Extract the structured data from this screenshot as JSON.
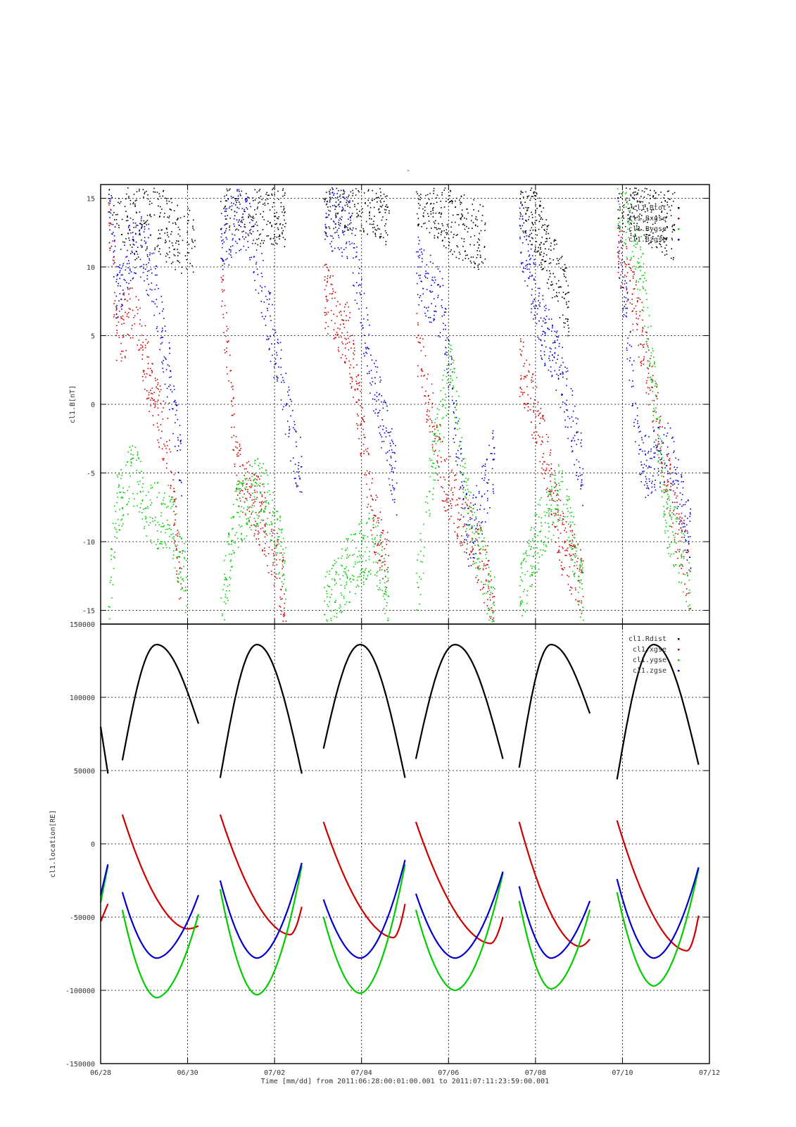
{
  "chart_data": [
    {
      "type": "scatter",
      "title": "-",
      "ylabel": "cl1.B[nT]",
      "ylim": [
        -16,
        16
      ],
      "yticks": [
        15,
        10,
        5,
        0,
        -5,
        -10,
        -15
      ],
      "ytick_labels": [
        "15",
        "10",
        "5",
        "0",
        "-5",
        "-10",
        "-15"
      ],
      "grid": true,
      "legend_position": "top-right",
      "series": [
        {
          "name": "cl1.Btot",
          "color": "#000000"
        },
        {
          "name": "cl1.Bxgse",
          "color": "#cc0000"
        },
        {
          "name": "cl1.Bygse",
          "color": "#00cc00"
        },
        {
          "name": "cl1.Bzgse",
          "color": "#0000cc"
        }
      ],
      "orbit_passes": [
        {
          "start": "06/28 04:00",
          "end": "06/30 04:00",
          "btot": [
            [
              0.0,
              16
            ],
            [
              0.3,
              13
            ],
            [
              0.5,
              14
            ],
            [
              0.8,
              12
            ],
            [
              1.0,
              12
            ],
            [
              1.3,
              15
            ]
          ],
          "bx": [
            [
              0.0,
              15
            ],
            [
              0.1,
              5
            ],
            [
              0.3,
              7
            ],
            [
              0.5,
              1
            ],
            [
              0.7,
              -3
            ],
            [
              0.85,
              -15
            ]
          ],
          "by": [
            [
              0.0,
              -15
            ],
            [
              0.1,
              -7
            ],
            [
              0.3,
              -5
            ],
            [
              0.5,
              -8
            ],
            [
              0.7,
              -8
            ],
            [
              0.9,
              -13
            ]
          ],
          "bz": [
            [
              0.0,
              16
            ],
            [
              0.1,
              8
            ],
            [
              0.3,
              12
            ],
            [
              0.5,
              10
            ],
            [
              0.7,
              2
            ],
            [
              0.85,
              -5
            ]
          ]
        },
        {
          "start": "06/30 18:00",
          "end": "07/02 15:00",
          "btot": [
            [
              0.1,
              15
            ],
            [
              0.5,
              14
            ],
            [
              0.8,
              14
            ]
          ],
          "bx": [
            [
              0.0,
              10
            ],
            [
              0.2,
              -5
            ],
            [
              0.5,
              -8
            ],
            [
              0.8,
              -14
            ]
          ],
          "by": [
            [
              0.0,
              -15
            ],
            [
              0.2,
              -8
            ],
            [
              0.5,
              -6
            ],
            [
              0.8,
              -12
            ]
          ],
          "bz": [
            [
              0.0,
              12
            ],
            [
              0.3,
              14
            ],
            [
              0.6,
              6
            ],
            [
              0.9,
              -3
            ],
            [
              1.0,
              -5
            ]
          ]
        },
        {
          "start": "07/03 03:00",
          "end": "07/05 00:00",
          "btot": [
            [
              0.2,
              15
            ],
            [
              0.5,
              15
            ],
            [
              0.8,
              14
            ]
          ],
          "bx": [
            [
              0.0,
              8
            ],
            [
              0.3,
              5
            ],
            [
              0.6,
              -8
            ],
            [
              0.8,
              -12
            ]
          ],
          "by": [
            [
              0.0,
              -15
            ],
            [
              0.3,
              -12
            ],
            [
              0.6,
              -10
            ],
            [
              0.8,
              -14
            ]
          ],
          "bz": [
            [
              0.0,
              14
            ],
            [
              0.3,
              13
            ],
            [
              0.6,
              2
            ],
            [
              0.9,
              -6
            ]
          ]
        },
        {
          "start": "07/05 06:00",
          "end": "07/07 06:00",
          "btot": [
            [
              0.1,
              15
            ],
            [
              0.5,
              13
            ],
            [
              0.8,
              12
            ]
          ],
          "bx": [
            [
              0.0,
              5
            ],
            [
              0.3,
              -5
            ],
            [
              0.6,
              -9
            ],
            [
              0.9,
              -14
            ]
          ],
          "by": [
            [
              0.0,
              -14
            ],
            [
              0.2,
              -4
            ],
            [
              0.4,
              3
            ],
            [
              0.6,
              -8
            ],
            [
              0.9,
              -15
            ]
          ],
          "bz": [
            [
              0.0,
              10
            ],
            [
              0.3,
              7
            ],
            [
              0.6,
              -10
            ],
            [
              0.9,
              -4
            ]
          ]
        },
        {
          "start": "07/07 15:00",
          "end": "07/09 06:00",
          "btot": [
            [
              0.1,
              15
            ],
            [
              0.4,
              11
            ],
            [
              0.7,
              7
            ]
          ],
          "bx": [
            [
              0.0,
              3
            ],
            [
              0.3,
              -2
            ],
            [
              0.6,
              -10
            ],
            [
              0.9,
              -13
            ]
          ],
          "by": [
            [
              0.0,
              -14
            ],
            [
              0.3,
              -9
            ],
            [
              0.6,
              -6
            ],
            [
              0.9,
              -14
            ]
          ],
          "bz": [
            [
              0.0,
              13
            ],
            [
              0.3,
              6
            ],
            [
              0.6,
              2
            ],
            [
              0.9,
              -5
            ]
          ]
        },
        {
          "start": "07/09 21:00",
          "end": "07/11 18:00",
          "btot": [
            [
              0.1,
              15
            ],
            [
              0.4,
              14
            ],
            [
              0.7,
              13
            ]
          ],
          "bx": [
            [
              0.0,
              12
            ],
            [
              0.3,
              5
            ],
            [
              0.6,
              -5
            ],
            [
              0.9,
              -13
            ]
          ],
          "by": [
            [
              0.0,
              15
            ],
            [
              0.3,
              10
            ],
            [
              0.6,
              -8
            ],
            [
              0.9,
              -13
            ]
          ],
          "bz": [
            [
              0.0,
              13
            ],
            [
              0.3,
              -5
            ],
            [
              0.6,
              -3
            ],
            [
              0.9,
              -10
            ]
          ]
        }
      ]
    },
    {
      "type": "line",
      "ylabel": "cl1.location[RE]",
      "xlabel": "Time [mm/dd]  from 2011:06:28:00:01:00.001  to  2011:07:11:23:59:00.001",
      "ylim": [
        -150000,
        150000
      ],
      "yticks": [
        150000,
        100000,
        50000,
        0,
        -50000,
        -100000,
        -150000
      ],
      "ytick_labels": [
        "150000",
        "100000",
        "50000",
        "0",
        "-50000",
        "-100000",
        "-150000"
      ],
      "xlim": [
        "06/28",
        "07/12"
      ],
      "xticks": [
        "06/28",
        "06/30",
        "07/02",
        "07/04",
        "07/06",
        "07/08",
        "07/10",
        "07/12"
      ],
      "grid": true,
      "legend_position": "top-right",
      "legend": [
        "cl1.Rdist",
        "cl1.xgse",
        "cl1.ygse",
        "cl1.zgse"
      ],
      "series": [
        {
          "name": "cl1.Rdist",
          "color": "#000000"
        },
        {
          "name": "cl1.xgse",
          "color": "#cc0000"
        },
        {
          "name": "cl1.ygse",
          "color": "#00cc00"
        },
        {
          "name": "cl1.zgse",
          "color": "#0000cc"
        }
      ],
      "passes": [
        {
          "start": "06/28 00:00",
          "end": "06/28 04:00",
          "rdist": [
            80000,
            48000
          ],
          "xgse": [
            -53000,
            -41000
          ],
          "ygse": [
            -40000,
            -15000
          ],
          "zgse": [
            -35000,
            -14000
          ]
        },
        {
          "start": "06/28 12:00",
          "end": "06/30 06:00",
          "rdist_start": 57000,
          "rdist_peak": 136000,
          "rdist_end": 82000,
          "xgse_start": 20000,
          "xgse_min": -58000,
          "xgse_end": -56000,
          "ygse_start": -45000,
          "ygse_min": -105000,
          "ygse_end": -48000,
          "zgse_start": -33000,
          "zgse_min": -78000,
          "zgse_end": -35000
        },
        {
          "start": "06/30 18:00",
          "end": "07/02 15:00",
          "rdist_start": 45000,
          "rdist_peak": 136000,
          "rdist_end": 48000,
          "xgse_start": 20000,
          "xgse_min": -62000,
          "xgse_end": -43000,
          "ygse_start": -31000,
          "ygse_min": -103000,
          "ygse_end": -15000,
          "zgse_start": -25000,
          "zgse_min": -78000,
          "zgse_end": -13000
        },
        {
          "start": "07/03 03:00",
          "end": "07/05 00:00",
          "rdist_start": 65000,
          "rdist_peak": 136000,
          "rdist_end": 45000,
          "xgse_start": 15000,
          "xgse_min": -64000,
          "xgse_end": -41000,
          "ygse_start": -50000,
          "ygse_min": -102000,
          "ygse_end": -14000,
          "zgse_start": -38000,
          "zgse_min": -78000,
          "zgse_end": -11000
        },
        {
          "start": "07/05 06:00",
          "end": "07/07 06:00",
          "rdist_start": 58000,
          "rdist_peak": 136000,
          "rdist_end": 58000,
          "xgse_start": 15000,
          "xgse_min": -68000,
          "xgse_end": -50000,
          "ygse_start": -45000,
          "ygse_min": -100000,
          "ygse_end": -20000,
          "zgse_start": -34000,
          "zgse_min": -78000,
          "zgse_end": -19000
        },
        {
          "start": "07/07 15:00",
          "end": "07/09 06:00",
          "rdist_start": 52000,
          "rdist_peak": 136000,
          "rdist_end": 89000,
          "xgse_start": 15000,
          "xgse_min": -70000,
          "xgse_end": -65000,
          "ygse_start": -39000,
          "ygse_min": -99000,
          "ygse_end": -45000,
          "zgse_start": -29000,
          "zgse_min": -78000,
          "zgse_end": -39000
        },
        {
          "start": "07/09 21:00",
          "end": "07/11 18:00",
          "rdist_start": 44000,
          "rdist_peak": 136000,
          "rdist_end": 54000,
          "xgse_start": 16000,
          "xgse_min": -73000,
          "xgse_end": -49000,
          "ygse_start": -33000,
          "ygse_min": -97000,
          "ygse_end": -17000,
          "zgse_start": -24000,
          "zgse_min": -78000,
          "zgse_end": -16000
        }
      ]
    }
  ]
}
